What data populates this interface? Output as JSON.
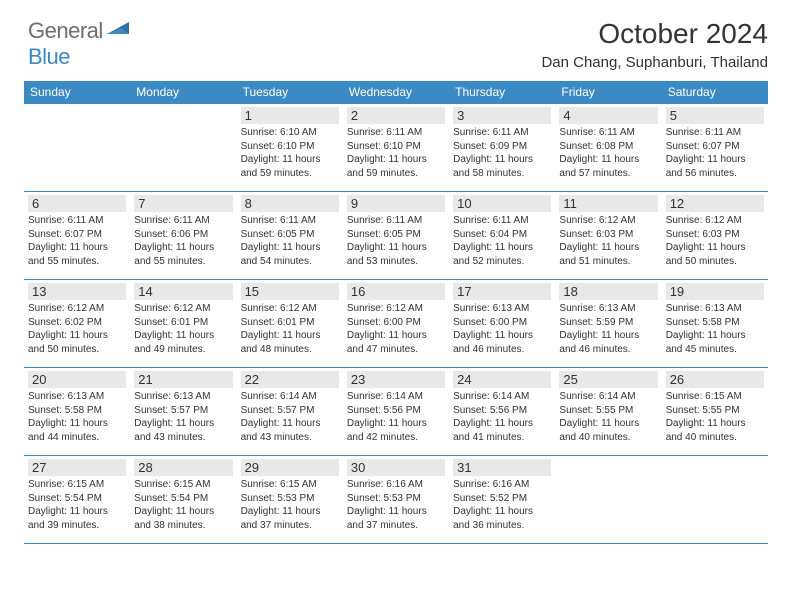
{
  "logo": {
    "word1": "General",
    "word2": "Blue"
  },
  "title": "October 2024",
  "location": "Dan Chang, Suphanburi, Thailand",
  "colors": {
    "brand_blue": "#3b8ac4",
    "header_bg": "#3b8ac4",
    "header_fg": "#ffffff",
    "daynum_bg": "#e8e8e8",
    "text": "#333333",
    "logo_grey": "#6e6e6e"
  },
  "typography": {
    "title_fontsize": 28,
    "location_fontsize": 15,
    "dayheader_fontsize": 12,
    "daynum_fontsize": 13,
    "body_fontsize": 10
  },
  "dayNames": [
    "Sunday",
    "Monday",
    "Tuesday",
    "Wednesday",
    "Thursday",
    "Friday",
    "Saturday"
  ],
  "weeks": [
    [
      null,
      null,
      {
        "n": "1",
        "sr": "6:10 AM",
        "ss": "6:10 PM",
        "dl": "11 hours and 59 minutes."
      },
      {
        "n": "2",
        "sr": "6:11 AM",
        "ss": "6:10 PM",
        "dl": "11 hours and 59 minutes."
      },
      {
        "n": "3",
        "sr": "6:11 AM",
        "ss": "6:09 PM",
        "dl": "11 hours and 58 minutes."
      },
      {
        "n": "4",
        "sr": "6:11 AM",
        "ss": "6:08 PM",
        "dl": "11 hours and 57 minutes."
      },
      {
        "n": "5",
        "sr": "6:11 AM",
        "ss": "6:07 PM",
        "dl": "11 hours and 56 minutes."
      }
    ],
    [
      {
        "n": "6",
        "sr": "6:11 AM",
        "ss": "6:07 PM",
        "dl": "11 hours and 55 minutes."
      },
      {
        "n": "7",
        "sr": "6:11 AM",
        "ss": "6:06 PM",
        "dl": "11 hours and 55 minutes."
      },
      {
        "n": "8",
        "sr": "6:11 AM",
        "ss": "6:05 PM",
        "dl": "11 hours and 54 minutes."
      },
      {
        "n": "9",
        "sr": "6:11 AM",
        "ss": "6:05 PM",
        "dl": "11 hours and 53 minutes."
      },
      {
        "n": "10",
        "sr": "6:11 AM",
        "ss": "6:04 PM",
        "dl": "11 hours and 52 minutes."
      },
      {
        "n": "11",
        "sr": "6:12 AM",
        "ss": "6:03 PM",
        "dl": "11 hours and 51 minutes."
      },
      {
        "n": "12",
        "sr": "6:12 AM",
        "ss": "6:03 PM",
        "dl": "11 hours and 50 minutes."
      }
    ],
    [
      {
        "n": "13",
        "sr": "6:12 AM",
        "ss": "6:02 PM",
        "dl": "11 hours and 50 minutes."
      },
      {
        "n": "14",
        "sr": "6:12 AM",
        "ss": "6:01 PM",
        "dl": "11 hours and 49 minutes."
      },
      {
        "n": "15",
        "sr": "6:12 AM",
        "ss": "6:01 PM",
        "dl": "11 hours and 48 minutes."
      },
      {
        "n": "16",
        "sr": "6:12 AM",
        "ss": "6:00 PM",
        "dl": "11 hours and 47 minutes."
      },
      {
        "n": "17",
        "sr": "6:13 AM",
        "ss": "6:00 PM",
        "dl": "11 hours and 46 minutes."
      },
      {
        "n": "18",
        "sr": "6:13 AM",
        "ss": "5:59 PM",
        "dl": "11 hours and 46 minutes."
      },
      {
        "n": "19",
        "sr": "6:13 AM",
        "ss": "5:58 PM",
        "dl": "11 hours and 45 minutes."
      }
    ],
    [
      {
        "n": "20",
        "sr": "6:13 AM",
        "ss": "5:58 PM",
        "dl": "11 hours and 44 minutes."
      },
      {
        "n": "21",
        "sr": "6:13 AM",
        "ss": "5:57 PM",
        "dl": "11 hours and 43 minutes."
      },
      {
        "n": "22",
        "sr": "6:14 AM",
        "ss": "5:57 PM",
        "dl": "11 hours and 43 minutes."
      },
      {
        "n": "23",
        "sr": "6:14 AM",
        "ss": "5:56 PM",
        "dl": "11 hours and 42 minutes."
      },
      {
        "n": "24",
        "sr": "6:14 AM",
        "ss": "5:56 PM",
        "dl": "11 hours and 41 minutes."
      },
      {
        "n": "25",
        "sr": "6:14 AM",
        "ss": "5:55 PM",
        "dl": "11 hours and 40 minutes."
      },
      {
        "n": "26",
        "sr": "6:15 AM",
        "ss": "5:55 PM",
        "dl": "11 hours and 40 minutes."
      }
    ],
    [
      {
        "n": "27",
        "sr": "6:15 AM",
        "ss": "5:54 PM",
        "dl": "11 hours and 39 minutes."
      },
      {
        "n": "28",
        "sr": "6:15 AM",
        "ss": "5:54 PM",
        "dl": "11 hours and 38 minutes."
      },
      {
        "n": "29",
        "sr": "6:15 AM",
        "ss": "5:53 PM",
        "dl": "11 hours and 37 minutes."
      },
      {
        "n": "30",
        "sr": "6:16 AM",
        "ss": "5:53 PM",
        "dl": "11 hours and 37 minutes."
      },
      {
        "n": "31",
        "sr": "6:16 AM",
        "ss": "5:52 PM",
        "dl": "11 hours and 36 minutes."
      },
      null,
      null
    ]
  ]
}
